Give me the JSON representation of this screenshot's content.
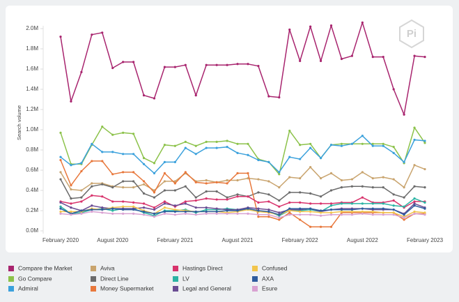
{
  "chart_data": {
    "type": "line",
    "logo": "Pi",
    "y_label": "Search volume",
    "categories": [
      "February 2020",
      null,
      null,
      null,
      null,
      "August 2020",
      null,
      null,
      null,
      null,
      null,
      "February 2021",
      null,
      null,
      null,
      null,
      null,
      "August 2021",
      null,
      null,
      null,
      null,
      null,
      "February 2022",
      null,
      null,
      null,
      null,
      null,
      "August 2022",
      null,
      null,
      null,
      null,
      null,
      "February 2023"
    ],
    "ylim": [
      0,
      2.0
    ],
    "yticks": [
      {
        "value": 0,
        "label": "0.0M"
      },
      {
        "value": 0.2,
        "label": "0.2M"
      },
      {
        "value": 0.4,
        "label": "0.4M"
      },
      {
        "value": 0.6,
        "label": "0.6M"
      },
      {
        "value": 0.8,
        "label": "0.8M"
      },
      {
        "value": 1.0,
        "label": "1.0M"
      },
      {
        "value": 1.2,
        "label": "1.2M"
      },
      {
        "value": 1.4,
        "label": "1.4M"
      },
      {
        "value": 1.6,
        "label": "1.6M"
      },
      {
        "value": 1.8,
        "label": "1.8M"
      },
      {
        "value": 2.0,
        "label": "2.0M"
      }
    ],
    "series": [
      {
        "name": "Compare the Market",
        "color": "#a8246e",
        "values": [
          1.92,
          1.28,
          1.57,
          1.94,
          1.96,
          1.61,
          1.67,
          1.67,
          1.34,
          1.31,
          1.62,
          1.62,
          1.64,
          1.34,
          1.64,
          1.64,
          1.64,
          1.65,
          1.65,
          1.63,
          1.33,
          1.32,
          1.99,
          1.68,
          2.02,
          1.68,
          2.03,
          1.7,
          1.73,
          2.06,
          1.72,
          1.72,
          1.4,
          1.15,
          1.73,
          1.72
        ]
      },
      {
        "name": "Go Compare",
        "color": "#8cc24a",
        "values": [
          0.97,
          0.66,
          0.66,
          0.85,
          1.03,
          0.95,
          0.97,
          0.96,
          0.72,
          0.67,
          0.85,
          0.84,
          0.88,
          0.84,
          0.88,
          0.88,
          0.89,
          0.86,
          0.86,
          0.71,
          0.68,
          0.56,
          0.99,
          0.85,
          0.86,
          0.72,
          0.85,
          0.86,
          0.86,
          0.86,
          0.86,
          0.86,
          0.83,
          0.67,
          1.02,
          0.87
        ]
      },
      {
        "name": "Admiral",
        "color": "#3ba1dc",
        "values": [
          0.73,
          0.65,
          0.67,
          0.86,
          0.78,
          0.78,
          0.76,
          0.76,
          0.66,
          0.57,
          0.68,
          0.68,
          0.82,
          0.76,
          0.82,
          0.82,
          0.83,
          0.77,
          0.75,
          0.7,
          0.68,
          0.58,
          0.73,
          0.71,
          0.82,
          0.72,
          0.85,
          0.84,
          0.86,
          0.94,
          0.84,
          0.84,
          0.77,
          0.68,
          0.9,
          0.89
        ]
      },
      {
        "name": "Aviva",
        "color": "#c9a46e",
        "values": [
          0.58,
          0.41,
          0.4,
          0.47,
          0.47,
          0.44,
          0.43,
          0.43,
          0.46,
          0.4,
          0.49,
          0.49,
          0.57,
          0.49,
          0.5,
          0.48,
          0.5,
          0.5,
          0.52,
          0.51,
          0.49,
          0.43,
          0.53,
          0.52,
          0.63,
          0.52,
          0.57,
          0.5,
          0.51,
          0.58,
          0.52,
          0.53,
          0.51,
          0.43,
          0.65,
          0.61
        ]
      },
      {
        "name": "Direct Line",
        "color": "#6b6b6b",
        "values": [
          0.51,
          0.32,
          0.33,
          0.44,
          0.46,
          0.43,
          0.49,
          0.49,
          0.37,
          0.33,
          0.4,
          0.4,
          0.44,
          0.33,
          0.39,
          0.39,
          0.33,
          0.36,
          0.34,
          0.38,
          0.36,
          0.3,
          0.38,
          0.38,
          0.37,
          0.34,
          0.4,
          0.43,
          0.44,
          0.44,
          0.43,
          0.43,
          0.36,
          0.33,
          0.44,
          0.43
        ]
      },
      {
        "name": "Money Supermarket",
        "color": "#e8783c",
        "values": [
          0.7,
          0.45,
          0.59,
          0.69,
          0.69,
          0.56,
          0.58,
          0.58,
          0.49,
          0.38,
          0.57,
          0.47,
          0.58,
          0.48,
          0.47,
          0.48,
          0.47,
          0.57,
          0.57,
          0.14,
          0.14,
          0.11,
          0.18,
          0.11,
          0.04,
          0.04,
          0.04,
          0.18,
          0.18,
          0.18,
          0.18,
          0.18,
          0.18,
          0.11,
          0.17,
          0.17
        ]
      },
      {
        "name": "Hastings Direct",
        "color": "#d8336c",
        "values": [
          0.29,
          0.27,
          0.29,
          0.35,
          0.34,
          0.29,
          0.29,
          0.28,
          0.27,
          0.23,
          0.29,
          0.24,
          0.29,
          0.3,
          0.32,
          0.31,
          0.31,
          0.34,
          0.34,
          0.28,
          0.29,
          0.24,
          0.28,
          0.28,
          0.27,
          0.27,
          0.27,
          0.28,
          0.28,
          0.33,
          0.28,
          0.28,
          0.3,
          0.23,
          0.29,
          0.29
        ]
      },
      {
        "name": "LV",
        "color": "#2bb3a3",
        "values": [
          0.24,
          0.17,
          0.18,
          0.21,
          0.22,
          0.2,
          0.22,
          0.22,
          0.18,
          0.15,
          0.2,
          0.2,
          0.21,
          0.18,
          0.21,
          0.21,
          0.22,
          0.21,
          0.21,
          0.19,
          0.19,
          0.15,
          0.2,
          0.2,
          0.21,
          0.19,
          0.25,
          0.27,
          0.27,
          0.27,
          0.27,
          0.27,
          0.25,
          0.24,
          0.32,
          0.28
        ]
      },
      {
        "name": "Legal and General",
        "color": "#6a4c93",
        "values": [
          0.28,
          0.23,
          0.2,
          0.25,
          0.23,
          0.22,
          0.22,
          0.22,
          0.23,
          0.21,
          0.27,
          0.25,
          0.27,
          0.23,
          0.23,
          0.22,
          0.21,
          0.21,
          0.23,
          0.22,
          0.21,
          0.18,
          0.21,
          0.21,
          0.22,
          0.19,
          0.21,
          0.22,
          0.22,
          0.22,
          0.21,
          0.21,
          0.21,
          0.17,
          0.27,
          0.23
        ]
      },
      {
        "name": "Confused",
        "color": "#f2c54c",
        "values": [
          0.19,
          0.19,
          0.19,
          0.22,
          0.21,
          0.23,
          0.24,
          0.24,
          0.2,
          0.17,
          0.23,
          0.21,
          0.2,
          0.19,
          0.19,
          0.19,
          0.18,
          0.19,
          0.21,
          0.19,
          0.18,
          0.16,
          0.2,
          0.19,
          0.19,
          0.18,
          0.18,
          0.19,
          0.19,
          0.19,
          0.19,
          0.18,
          0.18,
          0.14,
          0.19,
          0.18
        ]
      },
      {
        "name": "AXA",
        "color": "#2e5c9e",
        "values": [
          0.22,
          0.17,
          0.2,
          0.21,
          0.21,
          0.22,
          0.21,
          0.21,
          0.19,
          0.17,
          0.19,
          0.19,
          0.19,
          0.19,
          0.19,
          0.19,
          0.2,
          0.2,
          0.22,
          0.2,
          0.19,
          0.16,
          0.22,
          0.22,
          0.22,
          0.2,
          0.21,
          0.21,
          0.21,
          0.22,
          0.22,
          0.22,
          0.21,
          0.16,
          0.25,
          0.22
        ]
      },
      {
        "name": "Esure",
        "color": "#d9a2d2",
        "values": [
          0.17,
          0.16,
          0.17,
          0.19,
          0.18,
          0.17,
          0.17,
          0.17,
          0.16,
          0.14,
          0.17,
          0.16,
          0.17,
          0.16,
          0.17,
          0.17,
          0.17,
          0.17,
          0.17,
          0.16,
          0.16,
          0.13,
          0.16,
          0.16,
          0.16,
          0.15,
          0.16,
          0.16,
          0.16,
          0.17,
          0.16,
          0.16,
          0.16,
          0.13,
          0.17,
          0.16
        ]
      }
    ]
  }
}
